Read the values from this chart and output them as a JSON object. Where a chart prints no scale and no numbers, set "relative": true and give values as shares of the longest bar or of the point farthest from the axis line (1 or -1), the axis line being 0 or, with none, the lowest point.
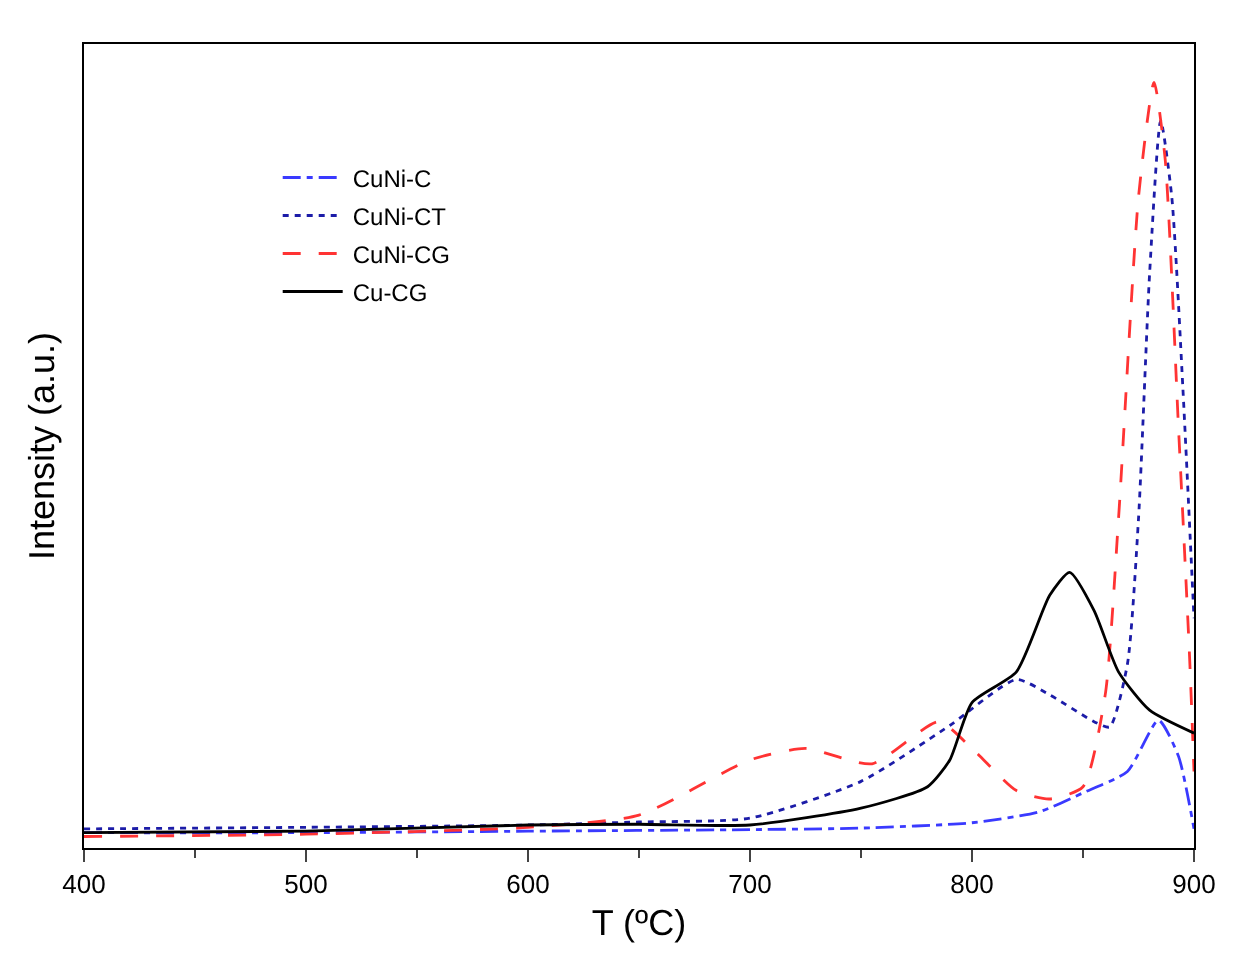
{
  "chart_data": {
    "type": "line",
    "xlabel": "T (ºC)",
    "ylabel": "Intensity (a.u.)",
    "relative": true,
    "xlim": [
      400,
      900
    ],
    "xticks": [
      400,
      500,
      600,
      700,
      800,
      900
    ],
    "legend": "top left",
    "marker": "none",
    "series": [
      {
        "name": "CuNi-C",
        "color": "#3a3aff",
        "line_style": "dashdot",
        "x": [
          400,
          500,
          600,
          700,
          750,
          800,
          830,
          850,
          870,
          884,
          893,
          900
        ],
        "values": [
          0.02,
          0.02,
          0.022,
          0.024,
          0.026,
          0.033,
          0.047,
          0.072,
          0.1,
          0.167,
          0.12,
          0.025
        ]
      },
      {
        "name": "CuNi-CT",
        "color": "#1c1ca8",
        "line_style": "dotted",
        "x": [
          400,
          500,
          600,
          650,
          700,
          750,
          790,
          820,
          835,
          855,
          862,
          870,
          875,
          880,
          885,
          890,
          895,
          900
        ],
        "values": [
          0.025,
          0.027,
          0.03,
          0.034,
          0.039,
          0.087,
          0.16,
          0.22,
          0.2,
          0.165,
          0.158,
          0.24,
          0.43,
          0.75,
          0.95,
          0.85,
          0.6,
          0.3
        ]
      },
      {
        "name": "CuNi-CG",
        "color": "#ff3333",
        "line_style": "dashed",
        "x": [
          400,
          500,
          600,
          650,
          700,
          725,
          755,
          785,
          800,
          820,
          835,
          850,
          860,
          866,
          875,
          882,
          887,
          893,
          898,
          900
        ],
        "values": [
          0.015,
          0.018,
          0.027,
          0.043,
          0.115,
          0.13,
          0.11,
          0.165,
          0.13,
          0.075,
          0.064,
          0.08,
          0.2,
          0.43,
          0.85,
          1,
          0.9,
          0.55,
          0.25,
          0.1
        ]
      },
      {
        "name": "Cu-CG",
        "color": "#000000",
        "line_style": "solid",
        "x": [
          400,
          500,
          600,
          650,
          700,
          750,
          780,
          790,
          800,
          820,
          835,
          844,
          855,
          866,
          880,
          900
        ],
        "values": [
          0.02,
          0.022,
          0.03,
          0.031,
          0.03,
          0.052,
          0.08,
          0.115,
          0.19,
          0.23,
          0.33,
          0.36,
          0.31,
          0.23,
          0.18,
          0.15
        ]
      }
    ]
  }
}
